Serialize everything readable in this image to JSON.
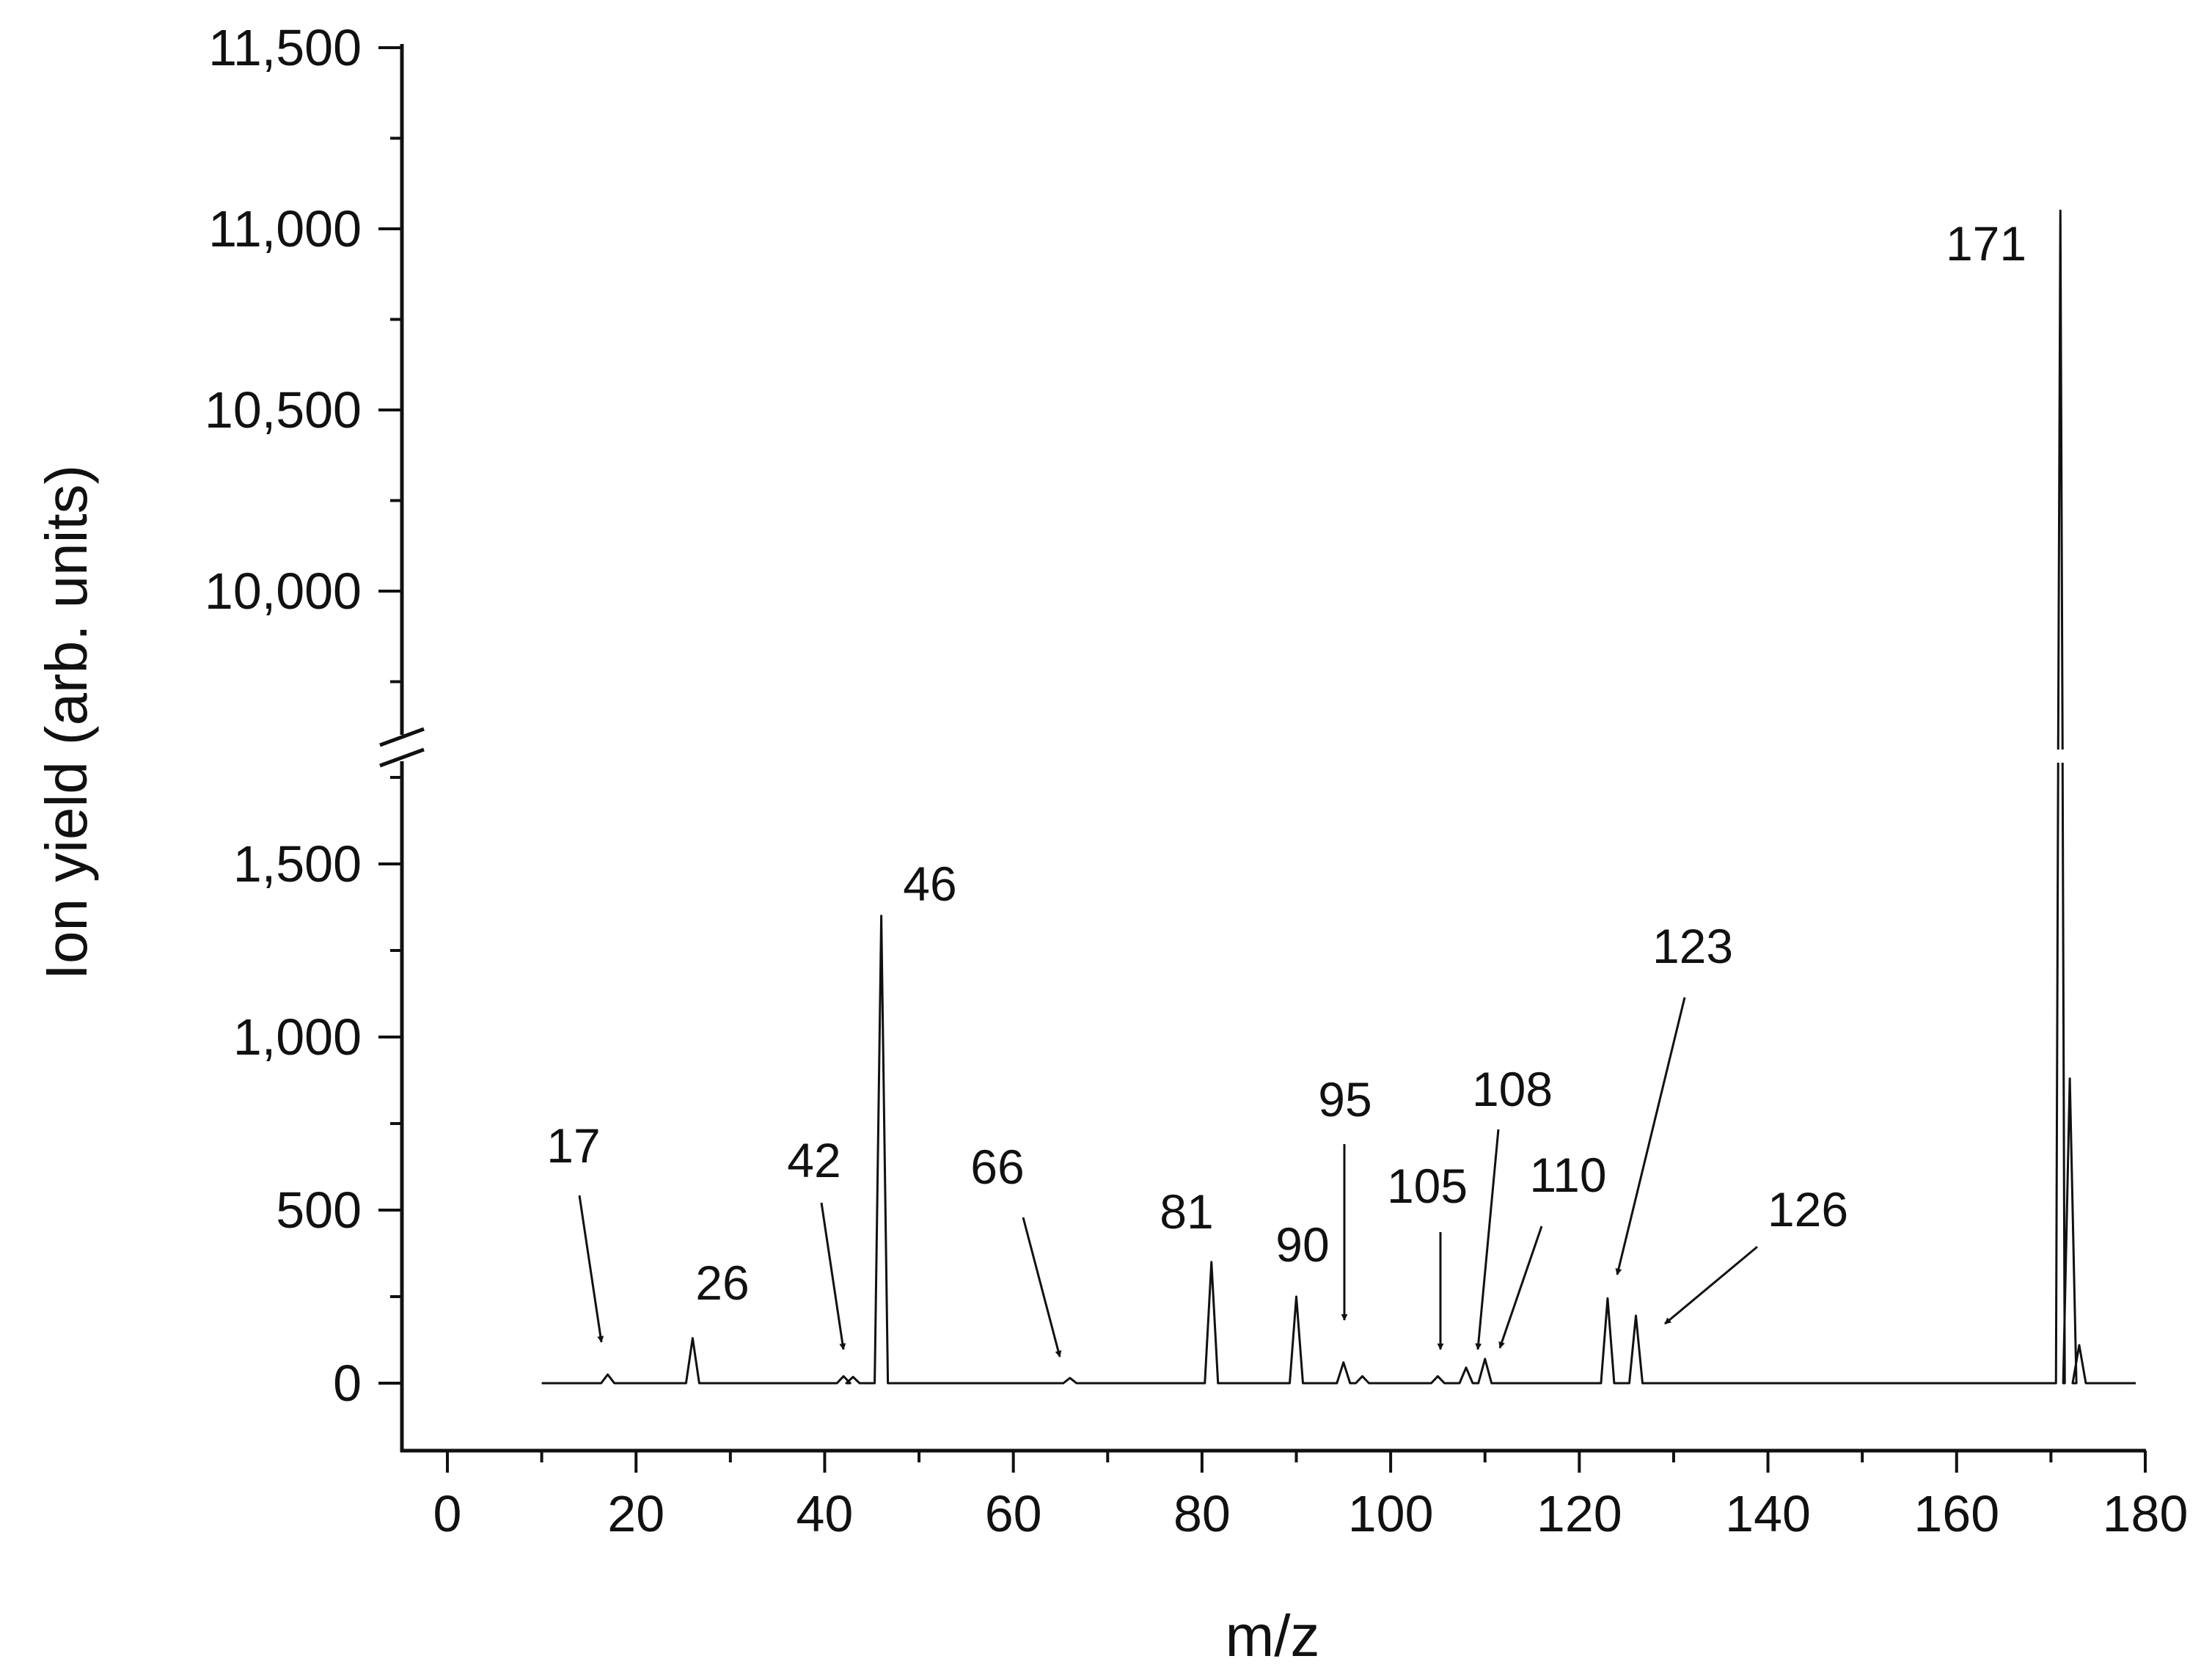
{
  "chart_data": {
    "type": "line",
    "xlabel": "m/z",
    "ylabel": "Ion yield (arb. units)",
    "xlim": [
      -5,
      180
    ],
    "x_ticks": [
      0,
      20,
      40,
      60,
      80,
      100,
      120,
      140,
      160,
      180
    ],
    "y_axis_break": true,
    "y_lower_segment": {
      "ylim": [
        -200,
        1850
      ],
      "ticks": [
        0,
        500,
        1000,
        1500
      ]
    },
    "y_upper_segment": {
      "ylim": [
        9600,
        11500
      ],
      "ticks": [
        10000,
        10500,
        11000,
        11500
      ]
    },
    "series": [
      {
        "peaks": [
          {
            "x": 17,
            "y": 25
          },
          {
            "x": 26,
            "y": 130
          },
          {
            "x": 42,
            "y": 20
          },
          {
            "x": 43,
            "y": 18
          },
          {
            "x": 46,
            "y": 1350
          },
          {
            "x": 66,
            "y": 15
          },
          {
            "x": 81,
            "y": 350
          },
          {
            "x": 90,
            "y": 250
          },
          {
            "x": 95,
            "y": 60
          },
          {
            "x": 97,
            "y": 20
          },
          {
            "x": 105,
            "y": 20
          },
          {
            "x": 108,
            "y": 45
          },
          {
            "x": 110,
            "y": 70
          },
          {
            "x": 123,
            "y": 245
          },
          {
            "x": 126,
            "y": 195
          },
          {
            "x": 171,
            "y": 11050
          },
          {
            "x": 172,
            "y": 880
          },
          {
            "x": 173,
            "y": 110
          }
        ]
      }
    ],
    "annotations": [
      {
        "text": "17",
        "x": 17,
        "arrow": true
      },
      {
        "text": "26",
        "x": 26,
        "arrow": false
      },
      {
        "text": "42",
        "x": 42,
        "arrow": true
      },
      {
        "text": "46",
        "x": 46,
        "arrow": false
      },
      {
        "text": "66",
        "x": 66,
        "arrow": true
      },
      {
        "text": "81",
        "x": 81,
        "arrow": false
      },
      {
        "text": "90",
        "x": 90,
        "arrow": false
      },
      {
        "text": "95",
        "x": 95,
        "arrow": true
      },
      {
        "text": "105",
        "x": 105,
        "arrow": true
      },
      {
        "text": "108",
        "x": 108,
        "arrow": true
      },
      {
        "text": "110",
        "x": 110,
        "arrow": true
      },
      {
        "text": "123",
        "x": 123,
        "arrow": true
      },
      {
        "text": "126",
        "x": 126,
        "arrow": true
      },
      {
        "text": "171",
        "x": 171,
        "arrow": false
      }
    ]
  }
}
